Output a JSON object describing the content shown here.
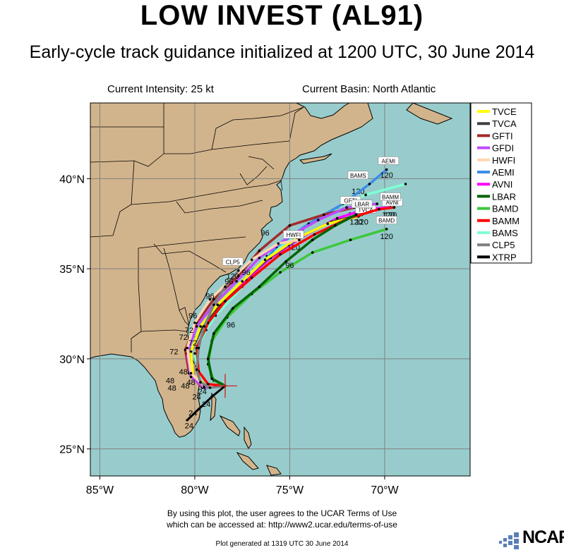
{
  "title": "LOW INVEST (AL91)",
  "subtitle": "Early-cycle track guidance initialized at 1200 UTC, 30 June 2014",
  "current_intensity": "Current Intensity: 25 kt",
  "current_basin": "Current Basin: North Atlantic",
  "terms_line1": "By using this plot, the user agrees to the UCAR Terms of Use",
  "terms_line2": "which can be accessed at: http://www2.ucar.edu/terms-of-use",
  "generated": "Plot generated at 1319 UTC   30 June 2014",
  "logo_text": "NCAR",
  "colors": {
    "ocean": "#98cccc",
    "land": "#d2b48c",
    "border": "#000000",
    "grid": "#808080"
  },
  "axes": {
    "x_ticks": [
      {
        "lon": -85,
        "label": "85°W"
      },
      {
        "lon": -80,
        "label": "80°W"
      },
      {
        "lon": -75,
        "label": "75°W"
      },
      {
        "lon": -70,
        "label": "70°W"
      }
    ],
    "y_ticks": [
      {
        "lat": 25,
        "label": "25°N"
      },
      {
        "lat": 30,
        "label": "30°N"
      },
      {
        "lat": 35,
        "label": "35°N"
      },
      {
        "lat": 40,
        "label": "40°N"
      }
    ],
    "lon_range": [
      -85.5,
      -65.5
    ],
    "lat_range": [
      23.5,
      44.2
    ]
  },
  "storm_position": {
    "lon": -78.4,
    "lat": 28.5
  },
  "chart_data": {
    "type": "track-map",
    "legend": [
      {
        "name": "TVCE",
        "color": "#ffff00"
      },
      {
        "name": "TVCA",
        "color": "#404040"
      },
      {
        "name": "GFTI",
        "color": "#a52a2a"
      },
      {
        "name": "GFDI",
        "color": "#c04cff"
      },
      {
        "name": "HWFI",
        "color": "#ffd7b0"
      },
      {
        "name": "AEMI",
        "color": "#3a8ee6"
      },
      {
        "name": "AVNI",
        "color": "#ff00ff"
      },
      {
        "name": "LBAR",
        "color": "#006400"
      },
      {
        "name": "BAMD",
        "color": "#3cc83c"
      },
      {
        "name": "BAMM",
        "color": "#ff0000"
      },
      {
        "name": "BAMS",
        "color": "#7fffd4"
      },
      {
        "name": "CLP5",
        "color": "#808080"
      },
      {
        "name": "XTRP",
        "color": "#000000"
      }
    ],
    "series": [
      {
        "name": "BAMS",
        "color": "#7fffd4",
        "points": [
          [
            -78.4,
            28.5
          ],
          [
            -79.3,
            28.6
          ],
          [
            -79.8,
            29.2
          ],
          [
            -80.0,
            30.3
          ],
          [
            -79.4,
            31.6
          ],
          [
            -78.9,
            32.4
          ],
          [
            -77.5,
            34.0
          ],
          [
            -76.2,
            35.7
          ],
          [
            -74.3,
            37.2
          ],
          [
            -72.5,
            38.4
          ],
          [
            -71.0,
            39.1
          ],
          [
            -68.9,
            39.7
          ]
        ],
        "labels": [
          {
            "text": "120",
            "lon": -71.4,
            "lat": 39.3
          },
          {
            "text": "BAMS",
            "lon": -71.4,
            "lat": 40.1,
            "box": true
          }
        ]
      },
      {
        "name": "AEMI",
        "color": "#3a8ee6",
        "points": [
          [
            -78.4,
            28.5
          ],
          [
            -79.4,
            28.4
          ],
          [
            -80.1,
            29.1
          ],
          [
            -80.2,
            30.4
          ],
          [
            -79.6,
            31.8
          ],
          [
            -78.6,
            33.0
          ],
          [
            -77.0,
            34.6
          ],
          [
            -75.7,
            36.2
          ],
          [
            -74.0,
            37.5
          ],
          [
            -72.2,
            38.6
          ],
          [
            -70.8,
            39.7
          ],
          [
            -69.9,
            40.5
          ]
        ],
        "labels": [
          {
            "text": "120",
            "lon": -69.9,
            "lat": 40.2
          },
          {
            "text": "AEMI",
            "lon": -69.8,
            "lat": 40.9,
            "box": true
          }
        ]
      },
      {
        "name": "GFTI",
        "color": "#a52a2a",
        "points": [
          [
            -78.4,
            28.5
          ],
          [
            -79.6,
            28.4
          ],
          [
            -80.3,
            29.2
          ],
          [
            -80.5,
            30.5
          ],
          [
            -79.9,
            32.0
          ],
          [
            -79.0,
            33.3
          ],
          [
            -77.7,
            34.6
          ],
          [
            -76.6,
            36.0
          ],
          [
            -75.0,
            37.4
          ],
          [
            -73.2,
            38.0
          ],
          [
            -71.6,
            38.4
          ]
        ],
        "labels": [
          {
            "text": "120",
            "lon": -71.6,
            "lat": 38.0
          },
          {
            "text": "GFTI",
            "lon": -71.8,
            "lat": 38.7,
            "box": true
          }
        ]
      },
      {
        "name": "GFDI",
        "color": "#c04cff",
        "points": [
          [
            -78.4,
            28.5
          ],
          [
            -79.5,
            28.4
          ],
          [
            -80.2,
            29.0
          ],
          [
            -80.4,
            30.3
          ],
          [
            -79.9,
            31.8
          ],
          [
            -79.0,
            33.0
          ],
          [
            -77.8,
            34.3
          ],
          [
            -76.6,
            35.6
          ],
          [
            -75.0,
            36.8
          ],
          [
            -73.5,
            37.7
          ],
          [
            -72.0,
            38.4
          ],
          [
            -70.4,
            38.6
          ]
        ],
        "labels": []
      },
      {
        "name": "AVNI",
        "color": "#ff00ff",
        "points": [
          [
            -78.4,
            28.5
          ],
          [
            -79.4,
            28.5
          ],
          [
            -80.1,
            29.1
          ],
          [
            -80.2,
            30.4
          ],
          [
            -79.6,
            31.8
          ],
          [
            -78.6,
            33.0
          ],
          [
            -77.3,
            34.4
          ],
          [
            -76.0,
            35.6
          ],
          [
            -74.3,
            36.8
          ],
          [
            -72.5,
            37.8
          ],
          [
            -71.0,
            38.3
          ],
          [
            -69.7,
            38.4
          ]
        ],
        "labels": [
          {
            "text": "120",
            "lon": -69.7,
            "lat": 38.0
          },
          {
            "text": "AVNI",
            "lon": -69.6,
            "lat": 38.6,
            "box": true
          }
        ]
      },
      {
        "name": "TVCA",
        "color": "#404040",
        "points": [
          [
            -78.4,
            28.5
          ],
          [
            -79.4,
            28.5
          ],
          [
            -80.1,
            29.1
          ],
          [
            -80.2,
            30.4
          ],
          [
            -79.6,
            31.8
          ],
          [
            -78.7,
            33.0
          ],
          [
            -77.4,
            34.4
          ],
          [
            -76.1,
            35.6
          ],
          [
            -74.4,
            36.8
          ],
          [
            -72.8,
            37.6
          ],
          [
            -71.2,
            38.0
          ]
        ],
        "labels": [
          {
            "text": "120",
            "lon": -71.2,
            "lat": 37.6
          },
          {
            "text": "TVCA",
            "lon": -71.0,
            "lat": 38.2,
            "box": true
          }
        ]
      },
      {
        "name": "TVCE",
        "color": "#ffff00",
        "points": [
          [
            -78.4,
            28.5
          ],
          [
            -79.4,
            28.5
          ],
          [
            -80.1,
            29.1
          ],
          [
            -80.2,
            30.4
          ],
          [
            -79.7,
            31.8
          ],
          [
            -78.8,
            33.0
          ],
          [
            -77.5,
            34.3
          ],
          [
            -76.3,
            35.5
          ],
          [
            -74.6,
            36.7
          ],
          [
            -73.0,
            37.5
          ],
          [
            -71.4,
            37.9
          ]
        ],
        "labels": []
      },
      {
        "name": "HWFI",
        "color": "#ffd7b0",
        "points": [
          [
            -78.4,
            28.5
          ],
          [
            -79.5,
            28.5
          ],
          [
            -80.2,
            29.2
          ],
          [
            -80.4,
            30.6
          ],
          [
            -80.0,
            32.0
          ],
          [
            -79.2,
            33.3
          ],
          [
            -78.0,
            34.5
          ],
          [
            -77.0,
            35.5
          ],
          [
            -75.6,
            36.4
          ],
          [
            -74.5,
            36.6
          ]
        ],
        "labels": [
          {
            "text": "120",
            "lon": -74.8,
            "lat": 36.2
          },
          {
            "text": "HWFI",
            "lon": -74.8,
            "lat": 36.8,
            "box": true
          }
        ]
      },
      {
        "name": "BAMM",
        "color": "#ff0000",
        "points": [
          [
            -78.4,
            28.5
          ],
          [
            -79.3,
            28.6
          ],
          [
            -79.8,
            29.3
          ],
          [
            -79.9,
            30.6
          ],
          [
            -79.3,
            32.0
          ],
          [
            -78.4,
            33.2
          ],
          [
            -77.0,
            34.5
          ],
          [
            -75.5,
            35.8
          ],
          [
            -73.7,
            36.9
          ],
          [
            -71.9,
            37.8
          ],
          [
            -70.3,
            38.3
          ],
          [
            -69.5,
            38.4
          ]
        ],
        "labels": [
          {
            "text": "120",
            "lon": -69.8,
            "lat": 38.0
          },
          {
            "text": "BAMM",
            "lon": -69.7,
            "lat": 38.9,
            "box": true
          }
        ]
      },
      {
        "name": "BAMD",
        "color": "#3cc83c",
        "points": [
          [
            -78.4,
            28.5
          ],
          [
            -79.0,
            28.8
          ],
          [
            -79.3,
            29.7
          ],
          [
            -79.1,
            31.0
          ],
          [
            -78.3,
            32.3
          ],
          [
            -77.0,
            33.6
          ],
          [
            -75.5,
            34.8
          ],
          [
            -73.8,
            35.9
          ],
          [
            -71.8,
            36.6
          ],
          [
            -69.9,
            37.2
          ]
        ],
        "labels": [
          {
            "text": "120",
            "lon": -69.9,
            "lat": 36.8
          },
          {
            "text": "BAMD",
            "lon": -69.9,
            "lat": 37.6,
            "box": true
          }
        ]
      },
      {
        "name": "LBAR",
        "color": "#006400",
        "points": [
          [
            -78.4,
            28.5
          ],
          [
            -79.1,
            28.9
          ],
          [
            -79.3,
            30.0
          ],
          [
            -79.0,
            31.4
          ],
          [
            -78.0,
            32.8
          ],
          [
            -76.6,
            34.0
          ],
          [
            -75.2,
            35.4
          ],
          [
            -73.8,
            36.6
          ],
          [
            -72.6,
            37.4
          ],
          [
            -71.5,
            38.0
          ]
        ],
        "labels": [
          {
            "text": "120",
            "lon": -71.5,
            "lat": 37.6
          },
          {
            "text": "LBAR",
            "lon": -71.2,
            "lat": 38.5,
            "box": true
          }
        ]
      },
      {
        "name": "CLP5",
        "color": "#808080",
        "points": [
          [
            -78.4,
            28.5
          ],
          [
            -79.2,
            28.4
          ],
          [
            -79.7,
            28.7
          ],
          [
            -79.9,
            29.4
          ],
          [
            -79.8,
            30.6
          ],
          [
            -79.5,
            31.8
          ],
          [
            -79.0,
            33.0
          ],
          [
            -78.4,
            34.0
          ],
          [
            -77.7,
            34.9
          ]
        ],
        "labels": [
          {
            "text": "120",
            "lon": -78.0,
            "lat": 34.6
          },
          {
            "text": "CLP5",
            "lon": -78.0,
            "lat": 35.3,
            "box": true
          }
        ]
      },
      {
        "name": "XTRP",
        "color": "#000000",
        "points": [
          [
            -78.4,
            28.5
          ],
          [
            -79.1,
            27.9
          ],
          [
            -79.8,
            27.2
          ],
          [
            -80.4,
            26.6
          ]
        ],
        "labels": []
      }
    ],
    "hour_labels": [
      {
        "text": "24",
        "lon": -79.9,
        "lat": 27.9
      },
      {
        "text": "24",
        "lon": -79.4,
        "lat": 27.5
      },
      {
        "text": "24",
        "lon": -80.1,
        "lat": 27.0
      },
      {
        "text": "24",
        "lon": -80.3,
        "lat": 26.3
      },
      {
        "text": "24",
        "lon": -79.6,
        "lat": 28.2
      },
      {
        "text": "48",
        "lon": -80.6,
        "lat": 29.3
      },
      {
        "text": "48",
        "lon": -81.3,
        "lat": 28.8
      },
      {
        "text": "48",
        "lon": -81.2,
        "lat": 28.4
      },
      {
        "text": "48",
        "lon": -80.2,
        "lat": 28.7
      },
      {
        "text": "48",
        "lon": -80.5,
        "lat": 28.5
      },
      {
        "text": "72",
        "lon": -81.1,
        "lat": 30.4
      },
      {
        "text": "72",
        "lon": -80.6,
        "lat": 31.2
      },
      {
        "text": "72",
        "lon": -80.3,
        "lat": 31.6
      },
      {
        "text": "72",
        "lon": -80.1,
        "lat": 30.9
      },
      {
        "text": "96",
        "lon": -79.2,
        "lat": 33.5
      },
      {
        "text": "96",
        "lon": -80.1,
        "lat": 32.4
      },
      {
        "text": "96",
        "lon": -78.2,
        "lat": 34.3
      },
      {
        "text": "96",
        "lon": -77.3,
        "lat": 34.8
      },
      {
        "text": "96",
        "lon": -76.3,
        "lat": 37.0
      },
      {
        "text": "96",
        "lon": -78.1,
        "lat": 31.9
      },
      {
        "text": "96",
        "lon": -75.0,
        "lat": 35.2
      }
    ]
  }
}
